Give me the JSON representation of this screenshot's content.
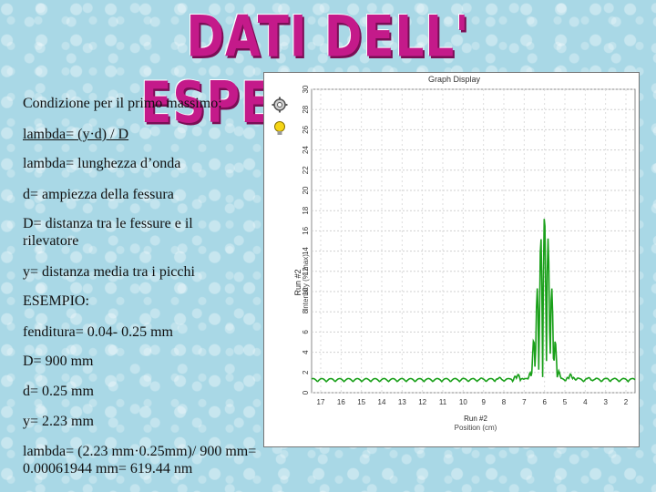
{
  "title": "DATI DELL' ESPERIMENTO",
  "lines": [
    "Condizione per il primo massimo:",
    "lambda= (y·d) / D",
    "lambda= lunghezza d’onda",
    "d= ampiezza della fessura",
    "D= distanza tra le fessure e il rilevatore",
    "y= distanza media tra i picchi",
    "ESEMPIO:",
    "fenditura= 0.04- 0.25 mm",
    "D= 900 mm",
    "d= 0.25 mm",
    "y= 2.23 mm",
    "lambda= (2.23 mm·0.25mm)/ 900 mm= 0.00061944 mm= 619.44 nm"
  ],
  "graph": {
    "window_title": "Graph Display",
    "y_label_run": "Run #2",
    "y_label": "Intensity (% max)",
    "x_label_run": "Run #2",
    "x_label": "Position (cm)",
    "y_ticks": [
      "0",
      "2",
      "4",
      "6",
      "8",
      "10",
      "12",
      "14",
      "16",
      "18",
      "20",
      "22",
      "24",
      "26",
      "28",
      "30"
    ],
    "x_ticks": [
      "17",
      "16",
      "15",
      "14",
      "13",
      "12",
      "11",
      "10",
      "9",
      "8",
      "7",
      "6",
      "5",
      "4",
      "3",
      "2"
    ],
    "trace_color": "#1aa01a",
    "sidebar_icons": [
      "gear-icon",
      "lightbulb-icon"
    ]
  }
}
